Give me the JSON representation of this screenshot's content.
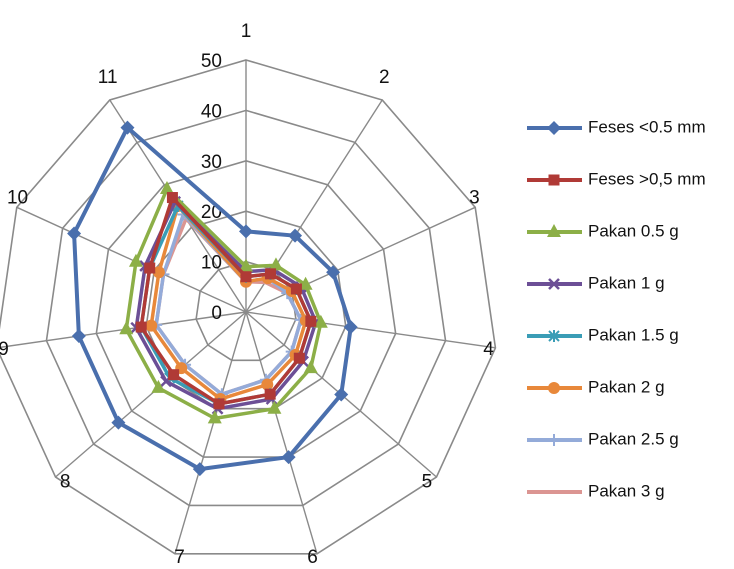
{
  "chart_data": {
    "type": "radar",
    "categories": [
      "1",
      "2",
      "3",
      "4",
      "5",
      "6",
      "7",
      "8",
      "9",
      "10",
      "11"
    ],
    "ylim": [
      0,
      50
    ],
    "yticks": [
      0,
      10,
      20,
      30,
      40,
      50
    ],
    "grid": true,
    "legend": "right",
    "series": [
      {
        "name": "Feses <0.5 mm",
        "color": "#4a6fad",
        "marker": "diamond",
        "values": [
          16,
          18,
          19,
          21,
          25,
          30,
          32.5,
          33.5,
          33.5,
          37.5,
          43.5
        ]
      },
      {
        "name": "Feses >0,5 mm",
        "color": "#b03a36",
        "marker": "square",
        "values": [
          7,
          9,
          11,
          13,
          14,
          17,
          19,
          19,
          21,
          21,
          27
        ]
      },
      {
        "name": "Pakan 0.5 g",
        "color": "#8caf47",
        "marker": "triangle",
        "values": [
          9,
          11,
          13,
          15,
          17,
          20,
          22,
          23,
          24,
          24,
          29
        ]
      },
      {
        "name": "Pakan 1 g",
        "color": "#6c4f96",
        "marker": "x",
        "values": [
          8,
          10,
          12,
          14,
          15,
          18,
          20,
          21,
          22,
          22,
          26
        ]
      },
      {
        "name": "Pakan 1.5 g",
        "color": "#3a9db6",
        "marker": "asterisk",
        "values": [
          7,
          9,
          11,
          13,
          14,
          17,
          19,
          20,
          21,
          21,
          25
        ]
      },
      {
        "name": "Pakan 2 g",
        "color": "#e8883a",
        "marker": "circle",
        "values": [
          6,
          8,
          10,
          12,
          13,
          15,
          18,
          17,
          19,
          19,
          25
        ]
      },
      {
        "name": "Pakan 2.5 g",
        "color": "#94abd9",
        "marker": "plus",
        "values": [
          6,
          8,
          9,
          11,
          12,
          14,
          17,
          16,
          18,
          18,
          23
        ]
      },
      {
        "name": "Pakan 3 g",
        "color": "#db9592",
        "marker": "none",
        "values": [
          6,
          7,
          9,
          11,
          12,
          14,
          17,
          16,
          18,
          18,
          22
        ]
      }
    ]
  }
}
